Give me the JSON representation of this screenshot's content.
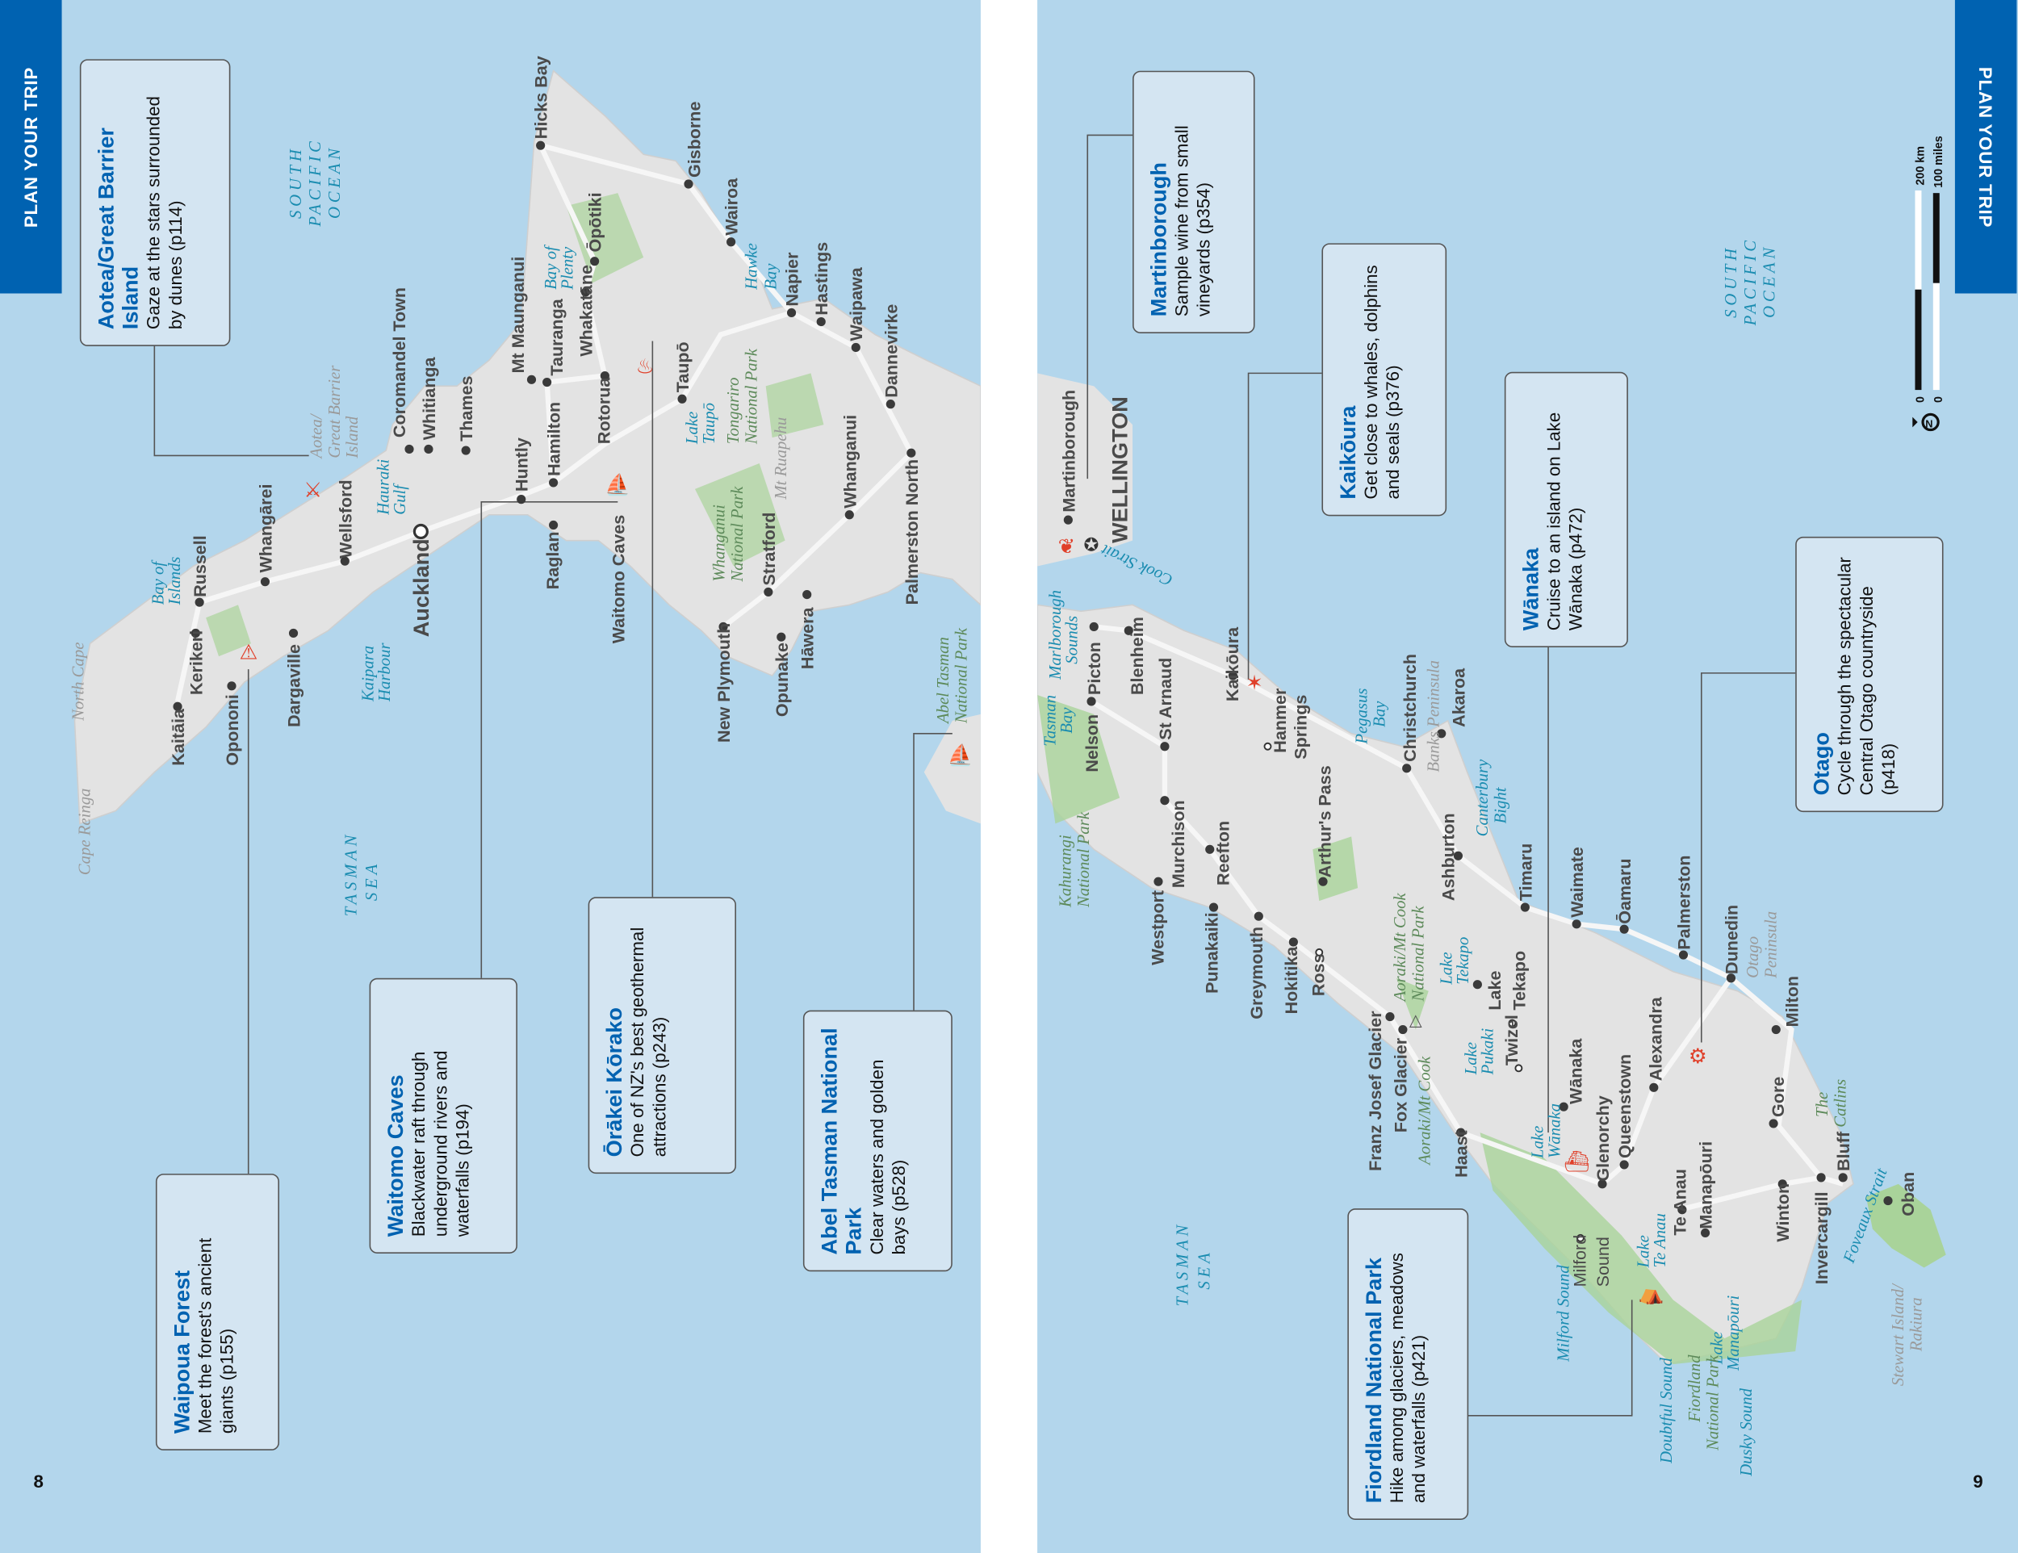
{
  "header": {
    "section_tab": "PLAN YOUR TRIP",
    "page_left": "8",
    "page_right": "9"
  },
  "colors": {
    "sea": "#b3d6ec",
    "land": "#e3e3e3",
    "parks": "#a9d39a",
    "accent": "#0062b1",
    "callout_bg": "#d4e5f2",
    "icon_red": "#e0402a"
  },
  "callouts": {
    "aotea": {
      "title": "Aotea/Great Barrier Island",
      "desc": "Gaze at the stars surrounded by dunes (p114)",
      "icon": "telescope-icon"
    },
    "waipoua": {
      "title": "Waipoua Forest",
      "desc": "Meet the forest's ancient giants (p155)",
      "icon": "tree-icon"
    },
    "waitomo": {
      "title": "Waitomo Caves",
      "desc": "Blackwater raft through underground rivers and waterfalls (p194)",
      "icon": "raft-icon"
    },
    "orakei": {
      "title": "Ōrākei Kōrako",
      "desc": "One of NZ's best geothermal attractions (p243)",
      "icon": "geothermal-icon"
    },
    "abel": {
      "title": "Abel Tasman National Park",
      "desc": "Clear waters and golden bays (p528)",
      "icon": "kayak-icon"
    },
    "martinborough": {
      "title": "Martinborough",
      "desc": "Sample wine from small vineyards (p354)",
      "icon": "grapes-icon"
    },
    "kaikoura": {
      "title": "Kaikōura",
      "desc": "Get close to whales, dolphins and seals (p376)",
      "icon": "starfish-icon"
    },
    "wanaka": {
      "title": "Wānaka",
      "desc": "Cruise to an island on Lake Wānaka (p472)",
      "icon": "boat-icon"
    },
    "otago": {
      "title": "Otago",
      "desc": "Cycle through the spectacular Central Otago countryside (p418)",
      "icon": "bicycle-icon"
    },
    "fiordland": {
      "title": "Fiordland National Park",
      "desc": "Hike among glaciers, meadows and waterfalls (p421)",
      "icon": "hiker-icon"
    }
  },
  "scale_bar": {
    "km_zero": "0",
    "km": "200 km",
    "mi_zero": "0",
    "mi": "100 miles",
    "north_icon": "north-arrow-icon"
  },
  "labels": {
    "cape_reinga": "Cape Reinga",
    "north_cape": "North Cape",
    "kaitaia": "Kaitāia",
    "kerikeri": "Kerikeri",
    "russell": "Russell",
    "bay_islands": [
      "Bay of",
      "Islands"
    ],
    "opononi": "Opononi",
    "dargaville": "Dargaville",
    "whangarei": "Whangārei",
    "wellsford": "Wellsford",
    "kaipara": [
      "Kaipara",
      "Harbour"
    ],
    "auckland": "Auckland",
    "hauraki": [
      "Hauraki",
      "Gulf"
    ],
    "aotea": [
      "Aotea/",
      "Great Barrier",
      "Island"
    ],
    "coromandel": "Coromandel Town",
    "whitianga": "Whitianga",
    "thames": "Thames",
    "huntly": "Huntly",
    "mt_maunganui": "Mt Maunganui",
    "hamilton": "Hamilton",
    "tauranga": "Tauranga",
    "raglan": "Raglan",
    "waitomo": "Waitomo Caves",
    "rotorua": "Rotorua",
    "whakatane": "Whakatāne",
    "bay_plenty": [
      "Bay of",
      "Plenty"
    ],
    "opotiki": "Ōpōtiki",
    "hicks_bay": "Hicks Bay",
    "gisborne": "Gisborne",
    "wairoa": "Wairoa",
    "hawke": [
      "Hawke",
      "Bay"
    ],
    "napier": "Napier",
    "hastings": "Hastings",
    "waipawa": "Waipawa",
    "dannevirke": "Dannevirke",
    "taupo": "Taupō",
    "lake_taupo": [
      "Lake",
      "Taupō"
    ],
    "tongariro": [
      "Tongariro",
      "National Park"
    ],
    "ruapehu": "Mt Ruapehu",
    "whanganui_np": [
      "Whanganui",
      "National Park"
    ],
    "stratford": "Stratford",
    "whanganui": "Whanganui",
    "palmerston_north": "Palmerston North",
    "new_plymouth": "New Plymouth",
    "opunake": "Opunake",
    "hawera": "Hāwera",
    "abel_tasman": [
      "Abel Tasman",
      "National Park"
    ],
    "tasman_sea_l": [
      "TASMAN",
      "SEA"
    ],
    "spo_l": [
      "SOUTH",
      "PACIFIC",
      "OCEAN"
    ],
    "martinborough": "Martinborough",
    "wellington": "WELLINGTON",
    "cook": "Cook Strait",
    "marlborough": [
      "Marlborough",
      "Sounds"
    ],
    "tasman_bay": [
      "Tasman",
      "Bay"
    ],
    "picton": "Picton",
    "blenheim": "Blenheim",
    "nelson": "Nelson",
    "st_arnaud": "St Arnaud",
    "kahurangi": [
      "Kahurangi",
      "National Park"
    ],
    "murchison": "Murchison",
    "kaikoura": "Kaikōura",
    "hanmer": [
      "Hanmer",
      "Springs"
    ],
    "pegasus": [
      "Pegasus",
      "Bay"
    ],
    "christchurch": "Christchurch",
    "banks": "Banks Peninsula",
    "akaroa": "Akaroa",
    "canterbury": [
      "Canterbury",
      "Bight"
    ],
    "reefton": "Reefton",
    "arthurs": "Arthur's Pass",
    "westport": "Westport",
    "punakaiki": "Punakaiki",
    "greymouth": "Greymouth",
    "hokitika": "Hokitika",
    "ross": "Ross",
    "ashburton": "Ashburton",
    "timaru": "Timaru",
    "waimate": "Waimate",
    "oamaru": "Ōamaru",
    "palmerston": "Palmerston",
    "dunedin": "Dunedin",
    "otago_pen": [
      "Otago",
      "Peninsula"
    ],
    "milton": "Milton",
    "aoraki_np": [
      "Aoraki/Mt Cook",
      "National Park"
    ],
    "lake_tekapo": [
      "Lake",
      "Tekapo"
    ],
    "tekapo_town": [
      "Lake",
      "Tekapo"
    ],
    "franz": "Franz Josef Glacier",
    "fox": "Fox Glacier",
    "aoraki": "Aoraki/Mt Cook",
    "lake_pukaki": [
      "Lake",
      "Pukaki"
    ],
    "twizel": "Twizel",
    "wanaka": "Wānaka",
    "haast": "Haast",
    "lake_wanaka": [
      "Lake",
      "Wānaka"
    ],
    "glenorchy": "Glenorchy",
    "queenstown": "Queenstown",
    "alexandra": "Alexandra",
    "gore": "Gore",
    "catlins": [
      "The",
      "Catlins"
    ],
    "te_anau": "Te Anau",
    "manapouri": "Manapōuri",
    "lake_te_anau": [
      "Lake",
      "Te Anau"
    ],
    "milford_town": [
      "Milford",
      "Sound"
    ],
    "milford_sound": "Milford Sound",
    "winton": "Winton",
    "invercargill": "Invercargill",
    "bluff": "Bluff",
    "foveaux": "Foveaux Strait",
    "oban": "Oban",
    "stewart": [
      "Stewart Island/",
      "Rakiura"
    ],
    "lake_manapouri": [
      "Lake",
      "Manapōuri"
    ],
    "doubtful": "Doubtful Sound",
    "fiordland_np": [
      "Fiordland",
      "National Park"
    ],
    "dusky": "Dusky Sound",
    "tasman_sea_r": [
      "TASMAN",
      "SEA"
    ],
    "spo_r": [
      "SOUTH",
      "PACIFIC",
      "OCEAN"
    ]
  }
}
